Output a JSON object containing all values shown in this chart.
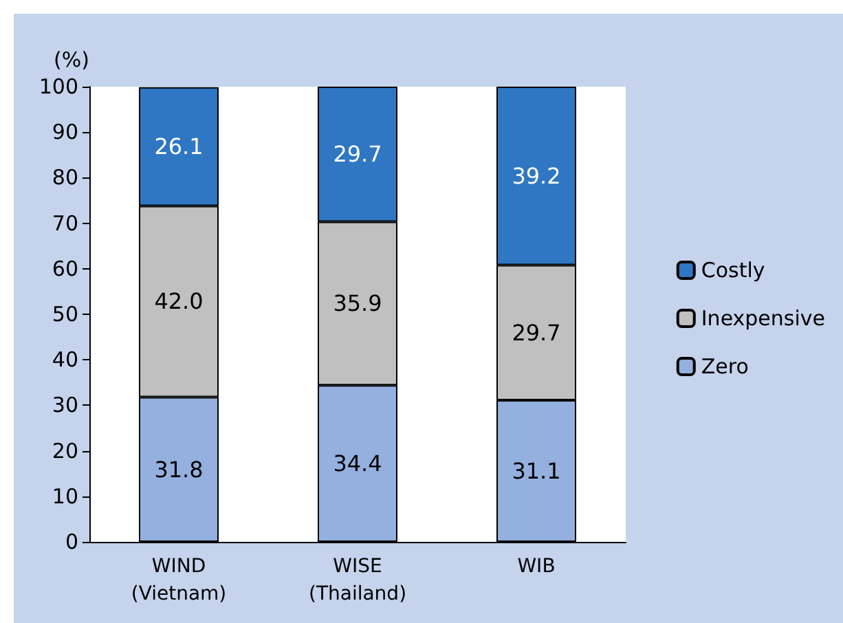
{
  "chart_data": {
    "type": "bar",
    "stacked": true,
    "ylabel": "(%)",
    "categories": [
      "WIND\n(Vietnam)",
      "WISE\n(Thailand)",
      "WIB"
    ],
    "series": [
      {
        "name": "Zero",
        "color": "#94b0de",
        "values": [
          31.8,
          34.4,
          31.1
        ],
        "value_labels": [
          "31.8",
          "34.4",
          "31.1"
        ]
      },
      {
        "name": "Inexpensive",
        "color": "#c0c0c0",
        "values": [
          42.0,
          35.9,
          29.7
        ],
        "value_labels": [
          "42.0",
          "35.9",
          "29.7"
        ]
      },
      {
        "name": "Costly",
        "color": "#2f77c2",
        "values": [
          26.1,
          29.7,
          39.2
        ],
        "value_labels": [
          "26.1",
          "29.7",
          "39.2"
        ]
      }
    ],
    "ylim": [
      0,
      100
    ],
    "yticks": [
      0,
      10,
      20,
      30,
      40,
      50,
      60,
      70,
      80,
      90,
      100
    ],
    "grid": false,
    "legend": "right"
  }
}
